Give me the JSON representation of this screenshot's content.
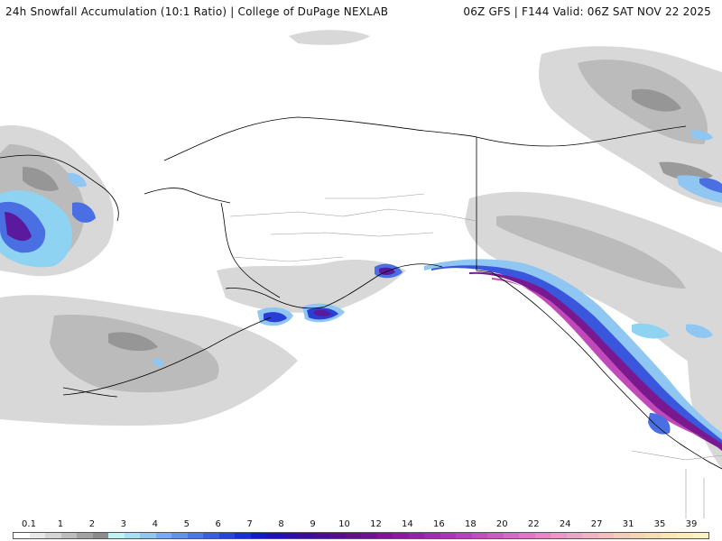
{
  "header": {
    "left_title": "24h Snowfall Accumulation (10:1 Ratio) | College of DuPage NEXLAB",
    "right_title": "06Z GFS | F144 Valid: 06Z SAT NOV 22 2025"
  },
  "legend": {
    "labels": [
      "0.1",
      "1",
      "2",
      "3",
      "4",
      "5",
      "6",
      "7",
      "8",
      "9",
      "10",
      "12",
      "14",
      "16",
      "18",
      "20",
      "22",
      "24",
      "27",
      "31",
      "35",
      "39"
    ],
    "colors": [
      "#ffffff",
      "#e8e8e8",
      "#d4d4d4",
      "#bdbdbd",
      "#a3a3a3",
      "#8c8c8c",
      "#bff3f3",
      "#a7dff5",
      "#8fc6f2",
      "#78acee",
      "#6193e9",
      "#4a78e5",
      "#355fe0",
      "#2446da",
      "#1530d4",
      "#101cc8",
      "#1e10b8",
      "#2e0ea8",
      "#3e0c9a",
      "#4a0c90",
      "#560d8b",
      "#620f89",
      "#6e1289",
      "#7a1690",
      "#871b98",
      "#9423a0",
      "#a02ca8",
      "#ac36b0",
      "#b642b6",
      "#c14ebd",
      "#cb5cc2",
      "#d46ac6",
      "#dc79c8",
      "#e288c8",
      "#e797c8",
      "#eba6c6",
      "#efb3c2",
      "#f2bfbd",
      "#f4cab8",
      "#f6d4b4",
      "#f8ddb2",
      "#fae5b3",
      "#fbecb8",
      "#fcf1c2"
    ]
  }
}
